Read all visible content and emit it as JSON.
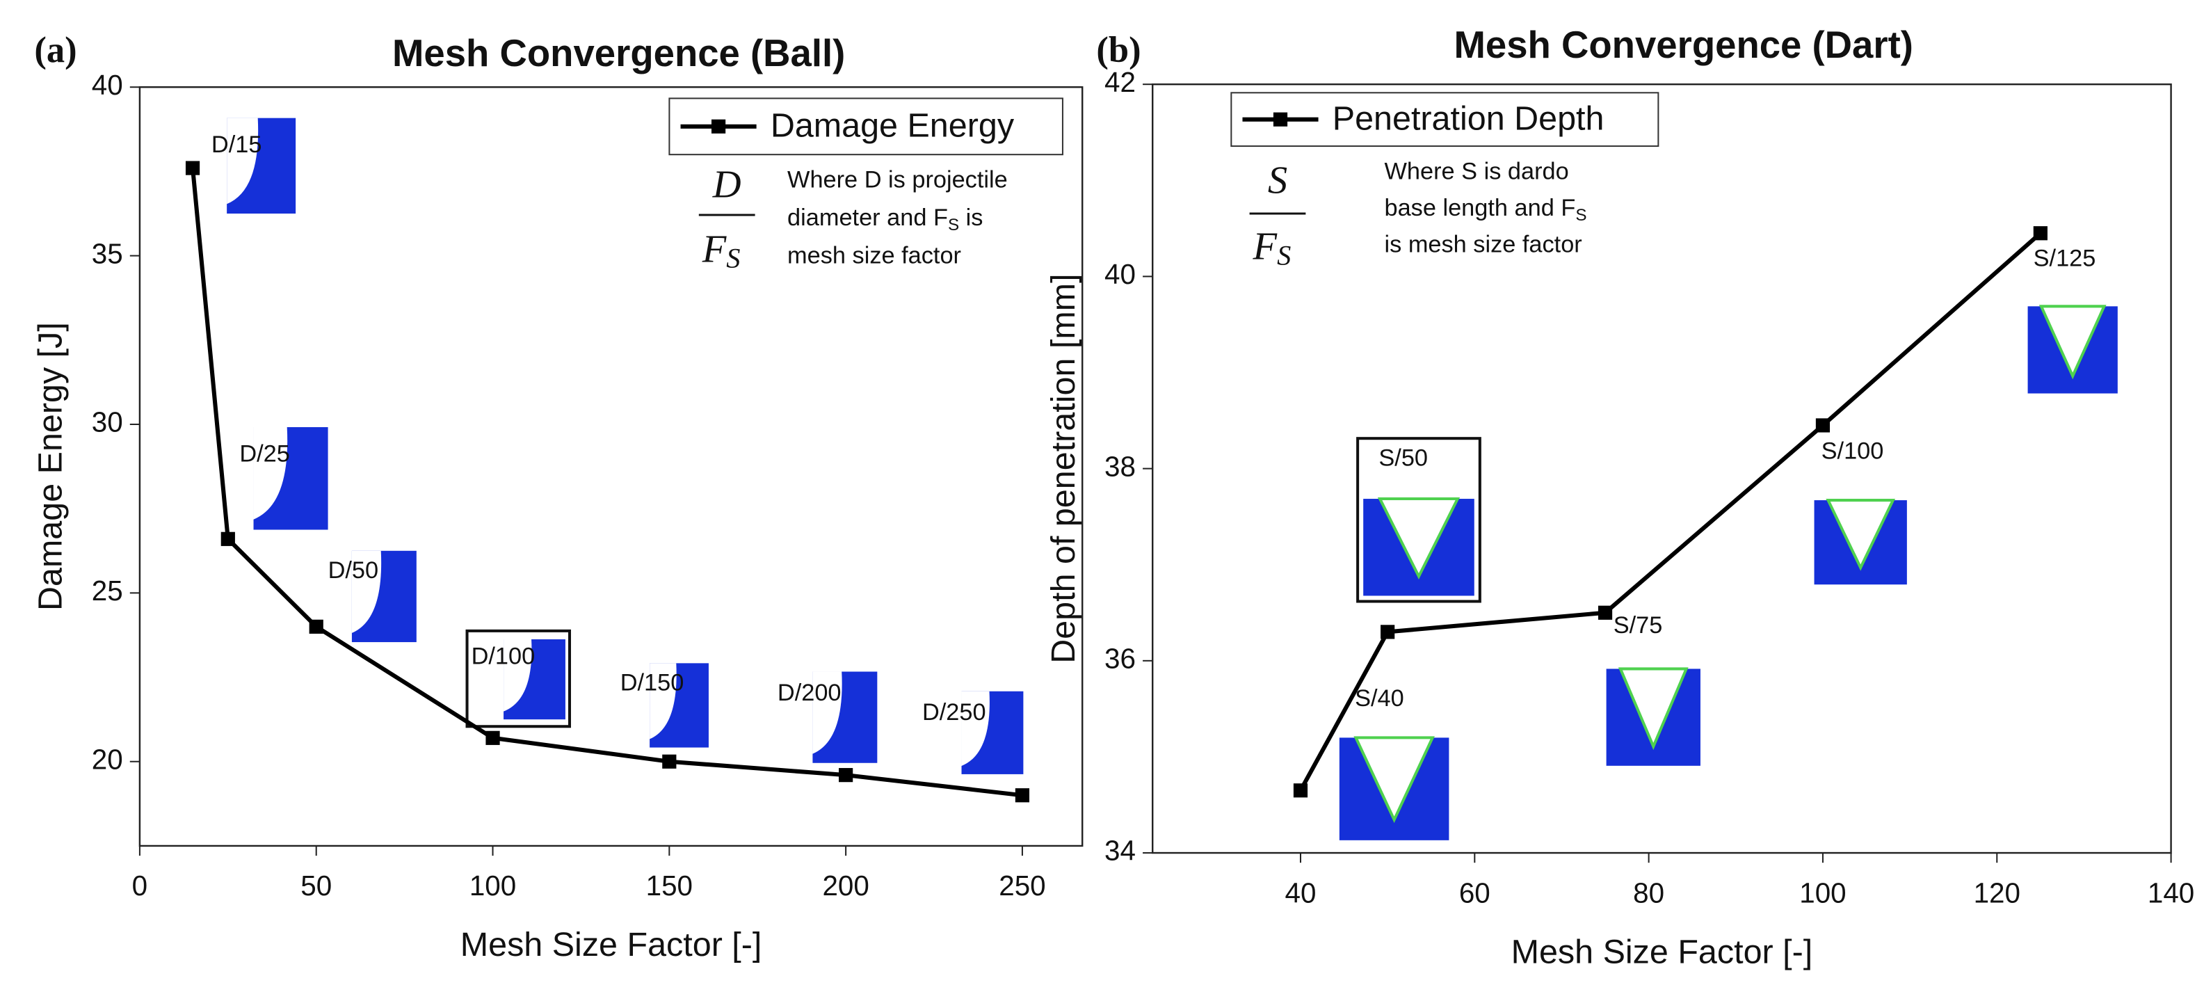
{
  "chart_data": [
    {
      "type": "line",
      "panel_label": "(a)",
      "title": "Mesh Convergence  (Ball)",
      "x_label": "Mesh Size Factor [-]",
      "y_label": "Damage Energy [J]",
      "xlim": [
        0,
        267
      ],
      "ylim": [
        17.5,
        40
      ],
      "xticks": [
        0,
        50,
        100,
        150,
        200,
        250
      ],
      "yticks": [
        20,
        25,
        30,
        35,
        40
      ],
      "x": [
        15,
        25,
        50,
        100,
        150,
        200,
        250
      ],
      "series": [
        {
          "name": "Damage Energy",
          "color": "#000000",
          "values": [
            37.6,
            26.6,
            24.0,
            20.7,
            20.0,
            19.6,
            19.0
          ]
        }
      ],
      "legend": "upper right",
      "annotations": [
        "D/15",
        "D/25",
        "D/50",
        "D/100",
        "D/150",
        "D/200",
        "D/250"
      ],
      "formula": {
        "numerator": "D",
        "denominator": "F",
        "denominator_sub": "S"
      },
      "note": [
        [
          "Where D is projectile"
        ],
        [
          "diameter and F",
          {
            "sub": "S"
          },
          " is"
        ],
        [
          "mesh size factor"
        ]
      ]
    },
    {
      "type": "line",
      "panel_label": "(b)",
      "title": "Mesh Convergence (Dart)",
      "x_label": "Mesh Size Factor [-]",
      "y_label": "Depth of penetration [mm]",
      "xlim": [
        23,
        140
      ],
      "ylim": [
        34,
        42
      ],
      "xticks": [
        40,
        60,
        80,
        100,
        120,
        140
      ],
      "yticks": [
        34,
        36,
        38,
        40,
        42
      ],
      "x": [
        40,
        50,
        75,
        100,
        125
      ],
      "series": [
        {
          "name": "Penetration Depth",
          "color": "#000000",
          "values": [
            34.65,
            36.3,
            36.5,
            38.45,
            40.45
          ]
        }
      ],
      "legend": "upper left",
      "annotations": [
        "S/40",
        "S/50",
        "S/75",
        "S/100",
        "S/125"
      ],
      "formula": {
        "numerator": "S",
        "denominator": "F",
        "denominator_sub": "S"
      },
      "note": [
        [
          "Where S is dardo"
        ],
        [
          "base length and F",
          {
            "sub": "S"
          }
        ],
        [
          "is mesh size factor"
        ]
      ]
    }
  ]
}
